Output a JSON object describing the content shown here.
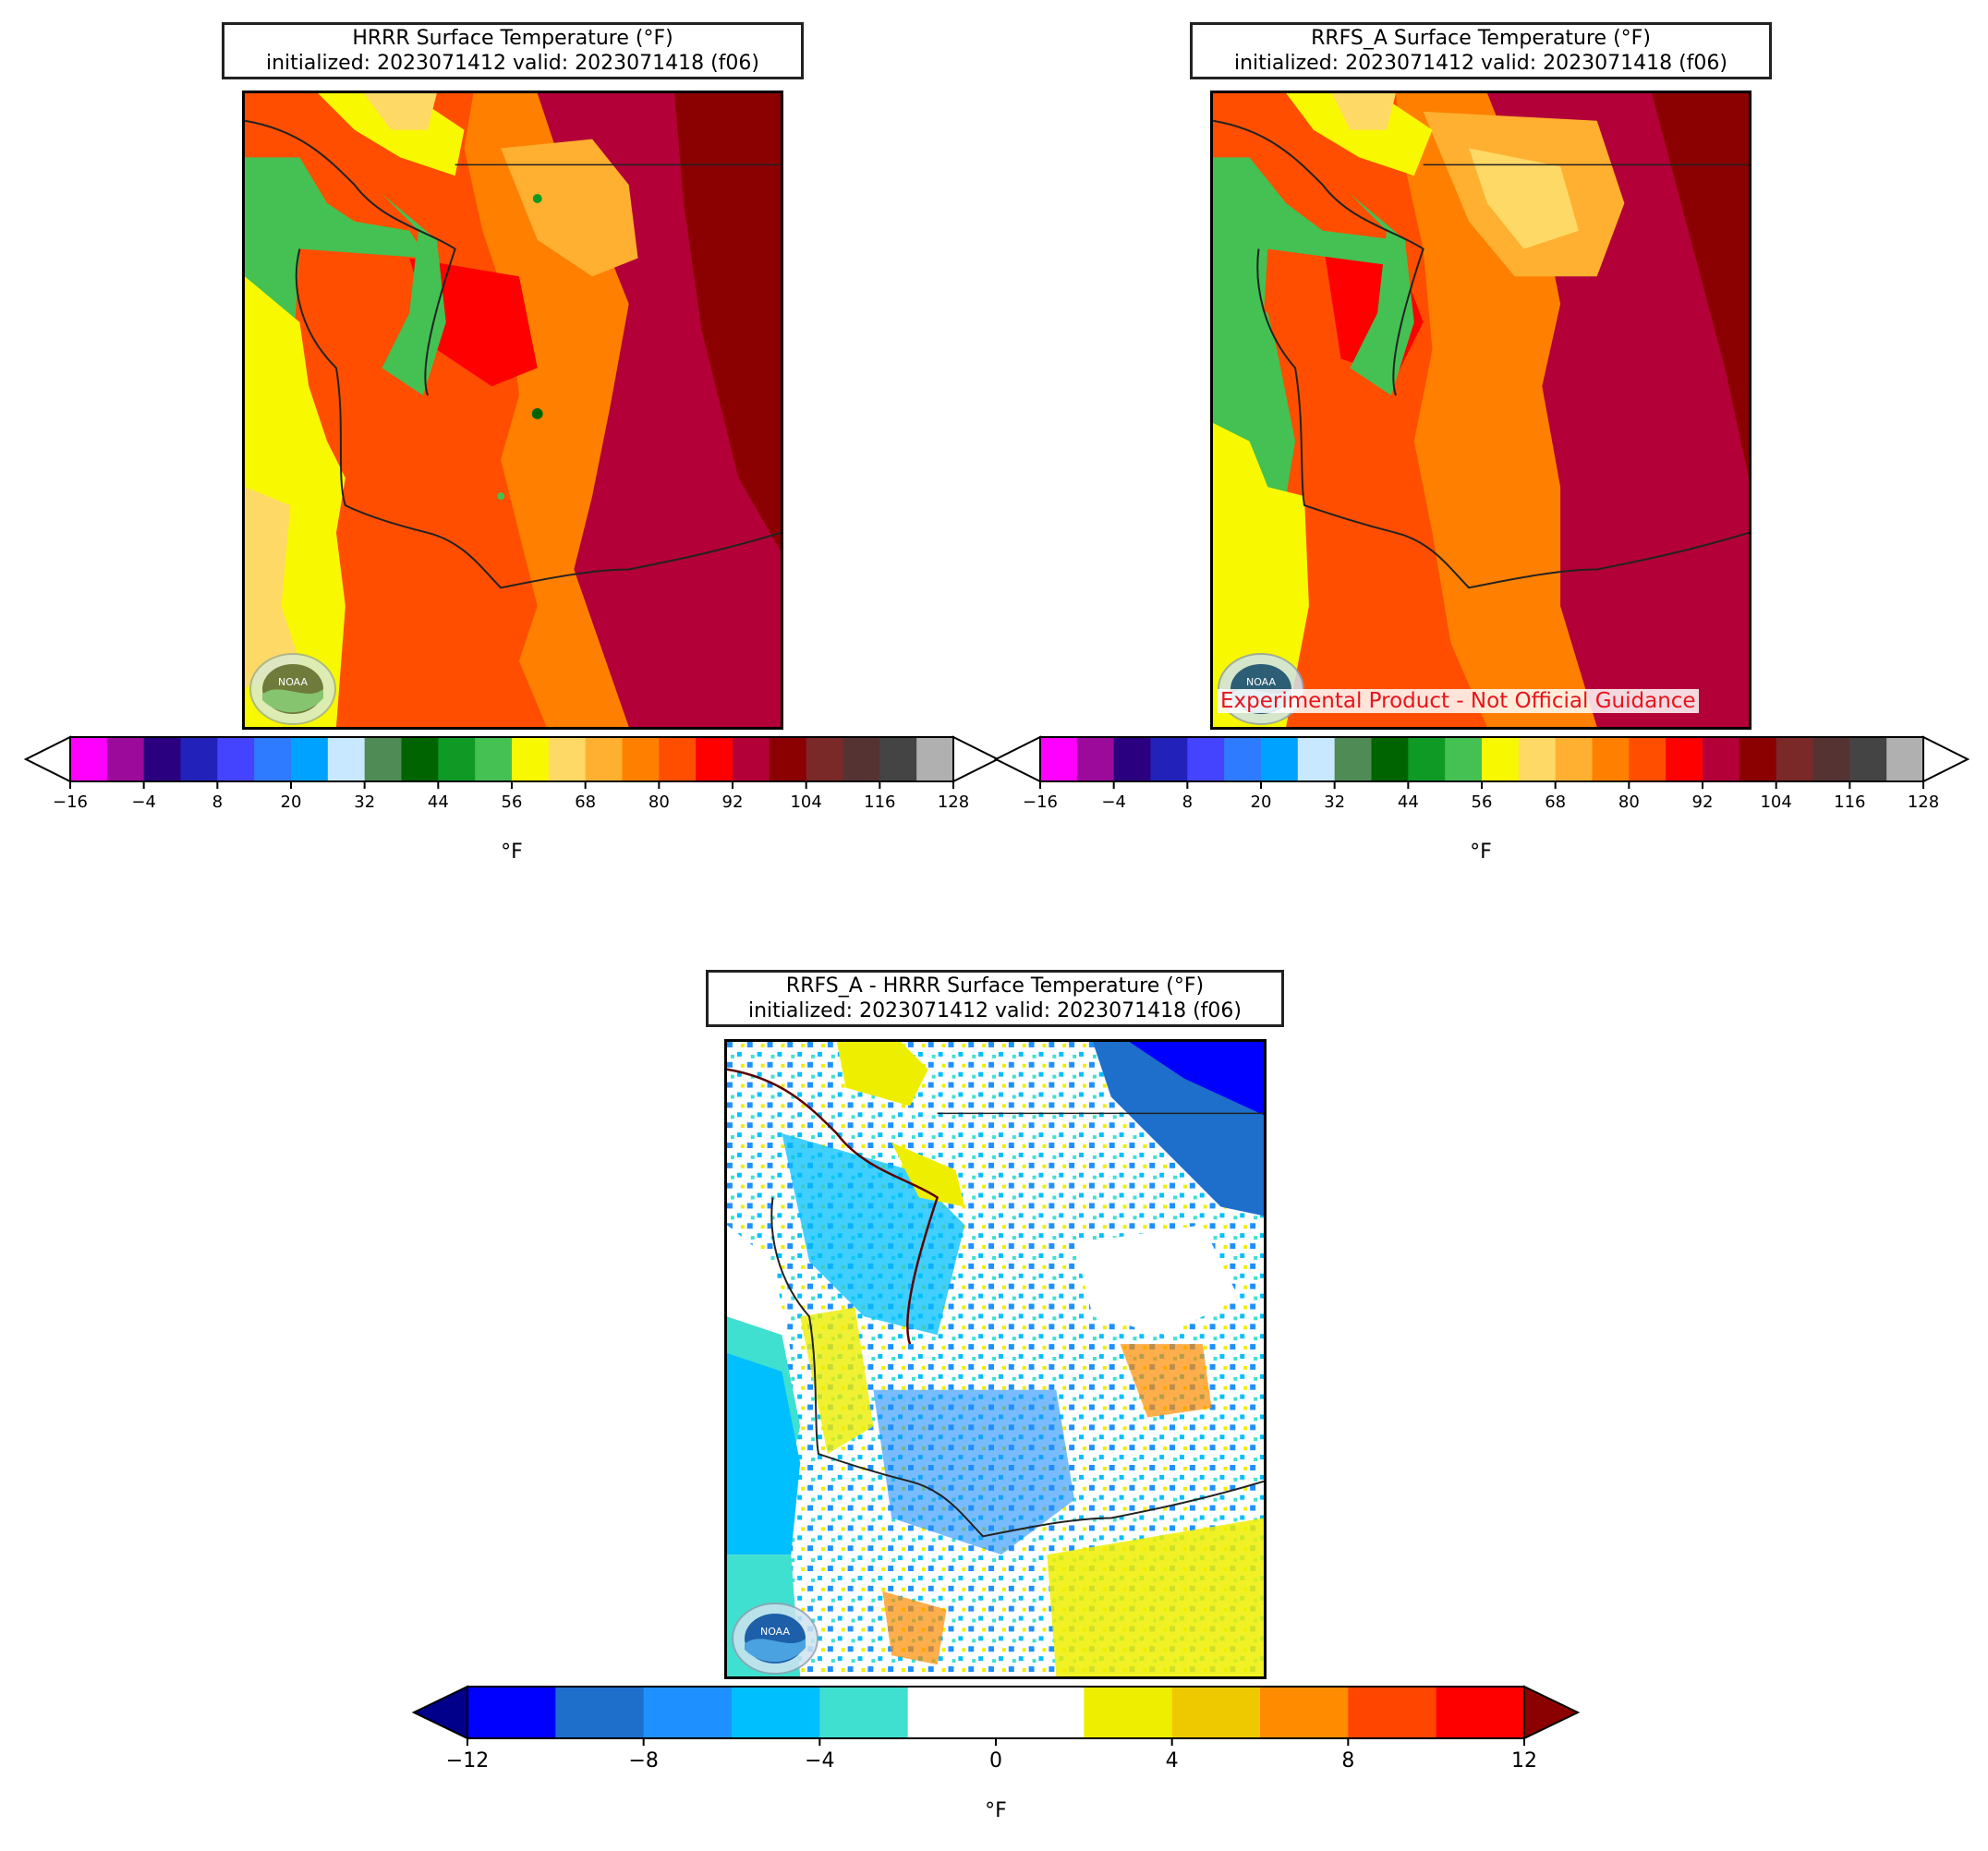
{
  "panels": [
    {
      "id": "hrrr",
      "title_line1": "HRRR Surface Temperature (°F)",
      "title_line2": "initialized: 2023071412 valid: 2023071418 (f06)"
    },
    {
      "id": "rrfs",
      "title_line1": "RRFS_A Surface Temperature (°F)",
      "title_line2": "initialized: 2023071412 valid: 2023071418 (f06)",
      "disclaimer": "Experimental Product - Not Official Guidance"
    },
    {
      "id": "diff",
      "title_line1": "RRFS_A - HRRR Surface Temperature (°F)",
      "title_line2": "initialized: 2023071412 valid: 2023071418 (f06)"
    }
  ],
  "temp_colorbar": {
    "unit": "°F",
    "ticks": [
      -16,
      -4,
      8,
      20,
      32,
      44,
      56,
      68,
      80,
      92,
      104,
      116,
      128
    ],
    "colors": [
      "#ff00ff",
      "#9b0a9b",
      "#2b0080",
      "#2222bb",
      "#4444ff",
      "#2e7bff",
      "#00a2ff",
      "#c8e8ff",
      "#4f8b54",
      "#006400",
      "#0e9a24",
      "#44c152",
      "#f8f800",
      "#ffd966",
      "#ffb030",
      "#ff8000",
      "#ff4e00",
      "#ff0000",
      "#b30038",
      "#8b0000",
      "#7a2828",
      "#553333",
      "#444444",
      "#b0b0b0"
    ],
    "under_color": "#ffffff",
    "over_color": "#ffffff",
    "start": -16,
    "step": 6
  },
  "diff_colorbar": {
    "unit": "°F",
    "ticks": [
      -12,
      -8,
      -4,
      0,
      4,
      8,
      12
    ],
    "colors": [
      "#0000ff",
      "#1e6fcc",
      "#1e90ff",
      "#00bfff",
      "#40e0d0",
      "#ffffff",
      "#ffffff",
      "#eeee00",
      "#eec900",
      "#ff8c00",
      "#ff4500",
      "#ff0000"
    ],
    "under_color": "#00008b",
    "over_color": "#8b0000",
    "start": -12,
    "step": 2
  },
  "logo_text": "NOAA"
}
